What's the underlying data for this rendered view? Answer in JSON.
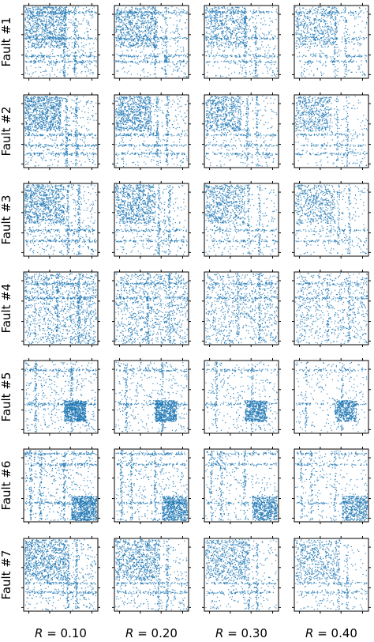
{
  "figure": {
    "row_labels": [
      "Fault #1",
      "Fault #2",
      "Fault #3",
      "Fault #4",
      "Fault #5",
      "Fault #6",
      "Fault #7"
    ],
    "col_labels": [
      {
        "var": "R",
        "value": "= 0.10"
      },
      {
        "var": "R",
        "value": "= 0.20"
      },
      {
        "var": "R",
        "value": "= 0.30"
      },
      {
        "var": "R",
        "value": "= 0.40"
      }
    ],
    "colors": {
      "points": "#1f77b4",
      "axes": "#000000",
      "background": "#ffffff"
    }
  },
  "chart_data": {
    "type": "scatter",
    "layout": "grid 7 rows x 4 columns",
    "rows": [
      "Fault #1",
      "Fault #2",
      "Fault #3",
      "Fault #4",
      "Fault #5",
      "Fault #6",
      "Fault #7"
    ],
    "columns": [
      "R = 0.10",
      "R = 0.20",
      "R = 0.30",
      "R = 0.40"
    ],
    "xlim": [
      0,
      1
    ],
    "ylim": [
      0,
      1
    ],
    "tick_labels_shown": false,
    "grid": false,
    "marker_color": "#1f77b4",
    "density_profile": {
      "Fault #1": {
        "dense_block": [
          0.0,
          0.58
        ],
        "streak_rows": [
          0.08,
          0.45,
          0.7,
          0.78
        ],
        "streak_cols": [
          0.55,
          0.7
        ]
      },
      "Fault #2": {
        "dense_block": [
          0.0,
          0.5
        ],
        "streak_rows": [
          0.55,
          0.7,
          0.82
        ],
        "streak_cols": [
          0.58,
          0.72
        ]
      },
      "Fault #3": {
        "dense_block": [
          0.0,
          0.55
        ],
        "streak_rows": [
          0.65,
          0.8
        ],
        "streak_cols": [
          0.6,
          0.75
        ]
      },
      "Fault #4": {
        "dense_block": [
          0.0,
          1.0
        ],
        "streak_rows": [
          0.15,
          0.35
        ],
        "streak_cols": [
          0.45,
          0.75
        ]
      },
      "Fault #5": {
        "dense_block": [
          0.55,
          0.85
        ],
        "streak_rows": [
          0.12,
          0.6
        ],
        "streak_cols": [
          0.15,
          0.65
        ]
      },
      "Fault #6": {
        "dense_block": [
          0.65,
          1.0
        ],
        "streak_rows": [
          0.05,
          0.2,
          0.75
        ],
        "streak_cols": [
          0.08,
          0.22,
          0.55
        ]
      },
      "Fault #7": {
        "dense_block": [
          0.0,
          0.58
        ],
        "streak_rows": [
          0.62,
          0.75
        ],
        "streak_cols": [
          0.6,
          0.72
        ]
      }
    },
    "density_by_column": [
      1.0,
      0.85,
      0.72,
      0.6
    ]
  }
}
